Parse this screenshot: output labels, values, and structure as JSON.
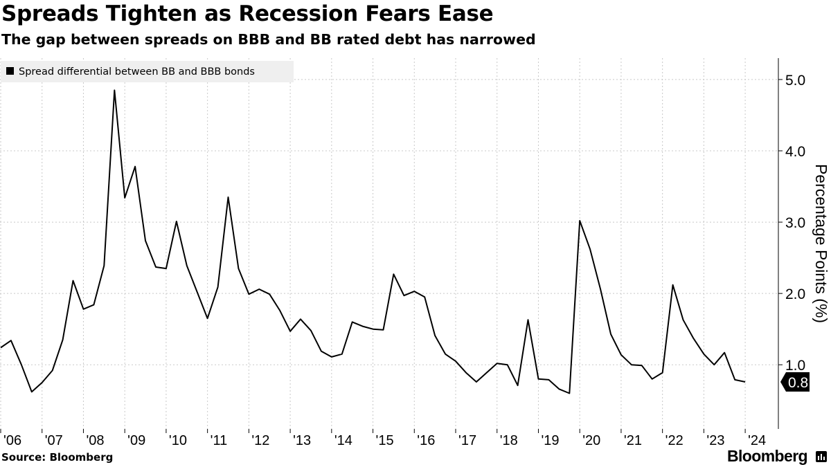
{
  "header": {
    "title": "Spreads Tighten as Recession Fears Ease",
    "subtitle": "The gap between spreads on BBB and BB rated debt has narrowed"
  },
  "footer": {
    "source": "Source: Bloomberg",
    "brand": "Bloomberg"
  },
  "colors": {
    "line": "#000000",
    "grid": "#c8c8c8",
    "legend_bg": "#efefef",
    "badge_bg": "#000000",
    "badge_text": "#ffffff"
  },
  "chart_data": {
    "type": "line",
    "title": "Spreads Tighten as Recession Fears Ease",
    "subtitle": "The gap between spreads on BBB and BB rated debt has narrowed",
    "xlabel": "",
    "ylabel": "Percentage Points (%)",
    "ylim": [
      0.1,
      5.3
    ],
    "xlim": [
      2006.0,
      2024.4
    ],
    "grid": true,
    "legend_position": "top-left",
    "x_tick_labels": [
      "'06",
      "'07",
      "'08",
      "'09",
      "'10",
      "'11",
      "'12",
      "'13",
      "'14",
      "'15",
      "'16",
      "'17",
      "'18",
      "'19",
      "'20",
      "'21",
      "'22",
      "'23",
      "'24"
    ],
    "x_tick_values": [
      2006,
      2007,
      2008,
      2009,
      2010,
      2011,
      2012,
      2013,
      2014,
      2015,
      2016,
      2017,
      2018,
      2019,
      2020,
      2021,
      2022,
      2023,
      2024
    ],
    "y_ticks": [
      1.0,
      2.0,
      3.0,
      4.0,
      5.0
    ],
    "y_tick_labels": [
      "1.0",
      "2.0",
      "3.0",
      "4.0",
      "5.0"
    ],
    "last_value_label": "0.8",
    "series": [
      {
        "name": "Spread differential between BB and BBB bonds",
        "x": [
          2006.0,
          2006.25,
          2006.5,
          2006.75,
          2007.0,
          2007.25,
          2007.5,
          2007.75,
          2008.0,
          2008.25,
          2008.5,
          2008.75,
          2009.0,
          2009.25,
          2009.5,
          2009.75,
          2010.0,
          2010.25,
          2010.5,
          2010.75,
          2011.0,
          2011.25,
          2011.5,
          2011.75,
          2012.0,
          2012.25,
          2012.5,
          2012.75,
          2013.0,
          2013.25,
          2013.5,
          2013.75,
          2014.0,
          2014.25,
          2014.5,
          2014.75,
          2015.0,
          2015.25,
          2015.5,
          2015.75,
          2016.0,
          2016.25,
          2016.5,
          2016.75,
          2017.0,
          2017.25,
          2017.5,
          2017.75,
          2018.0,
          2018.25,
          2018.5,
          2018.75,
          2019.0,
          2019.25,
          2019.5,
          2019.75,
          2020.0,
          2020.25,
          2020.5,
          2020.75,
          2021.0,
          2021.25,
          2021.5,
          2021.75,
          2022.0,
          2022.25,
          2022.5,
          2022.75,
          2023.0,
          2023.25,
          2023.5,
          2023.75,
          2024.0
        ],
        "values": [
          1.24,
          1.34,
          1.0,
          0.62,
          0.75,
          0.92,
          1.35,
          2.18,
          1.78,
          1.84,
          2.39,
          4.85,
          3.34,
          3.78,
          2.74,
          2.37,
          2.35,
          3.01,
          2.39,
          2.02,
          1.65,
          2.09,
          3.35,
          2.35,
          1.99,
          2.06,
          1.99,
          1.76,
          1.47,
          1.64,
          1.48,
          1.19,
          1.11,
          1.15,
          1.6,
          1.54,
          1.5,
          1.49,
          2.27,
          1.97,
          2.03,
          1.95,
          1.41,
          1.15,
          1.05,
          0.89,
          0.76,
          0.89,
          1.02,
          1.0,
          0.71,
          1.63,
          0.8,
          0.79,
          0.66,
          0.6,
          3.02,
          2.62,
          2.06,
          1.43,
          1.14,
          1.0,
          0.99,
          0.8,
          0.89,
          2.12,
          1.63,
          1.37,
          1.15,
          1.0,
          1.17,
          0.79,
          0.76
        ]
      }
    ]
  }
}
